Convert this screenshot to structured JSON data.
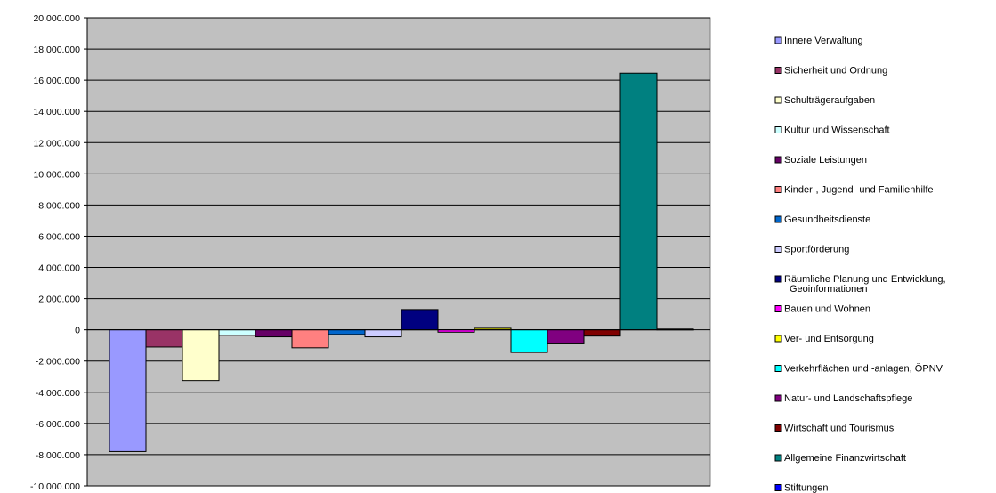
{
  "chart_data": {
    "type": "bar",
    "title": "",
    "xlabel": "",
    "ylabel": "",
    "ylim": [
      -10000000,
      20000000
    ],
    "ytick_step": 2000000,
    "yticks": [
      "-10.000.000",
      "-8.000.000",
      "-6.000.000",
      "-4.000.000",
      "-2.000.000",
      "0",
      "2.000.000",
      "4.000.000",
      "6.000.000",
      "8.000.000",
      "10.000.000",
      "12.000.000",
      "14.000.000",
      "16.000.000",
      "18.000.000",
      "20.000.000"
    ],
    "grid": true,
    "plot_background": "#c0c0c0",
    "legend_position": "right",
    "series": [
      {
        "name": "Innere Verwaltung",
        "value": -7800000,
        "color": "#9999ff"
      },
      {
        "name": "Sicherheit und Ordnung",
        "value": -1100000,
        "color": "#993366"
      },
      {
        "name": "Schulträgeraufgaben",
        "value": -3250000,
        "color": "#ffffcc"
      },
      {
        "name": "Kultur und Wissenschaft",
        "value": -350000,
        "color": "#ccffff"
      },
      {
        "name": "Soziale Leistungen",
        "value": -450000,
        "color": "#660066"
      },
      {
        "name": "Kinder-, Jugend- und Familienhilfe",
        "value": -1150000,
        "color": "#ff8080"
      },
      {
        "name": "Gesundheitsdienste",
        "value": -300000,
        "color": "#0066cc"
      },
      {
        "name": "Sportförderung",
        "value": -450000,
        "color": "#ccccff"
      },
      {
        "name": "Räumliche Planung und Entwicklung, Geoinformationen",
        "value": 1300000,
        "color": "#000080"
      },
      {
        "name": "Bauen und Wohnen",
        "value": -150000,
        "color": "#ff00ff"
      },
      {
        "name": "Ver- und Entsorgung",
        "value": 100000,
        "color": "#ffff00"
      },
      {
        "name": "Verkehrflächen und -anlagen, ÖPNV",
        "value": -1450000,
        "color": "#00ffff"
      },
      {
        "name": "Natur- und Landschaftspflege",
        "value": -900000,
        "color": "#800080"
      },
      {
        "name": "Wirtschaft und Tourismus",
        "value": -400000,
        "color": "#800000"
      },
      {
        "name": "Allgemeine Finanzwirtschaft",
        "value": 16450000,
        "color": "#008080"
      },
      {
        "name": "Stiftungen",
        "value": 50000,
        "color": "#0000ff"
      }
    ]
  }
}
